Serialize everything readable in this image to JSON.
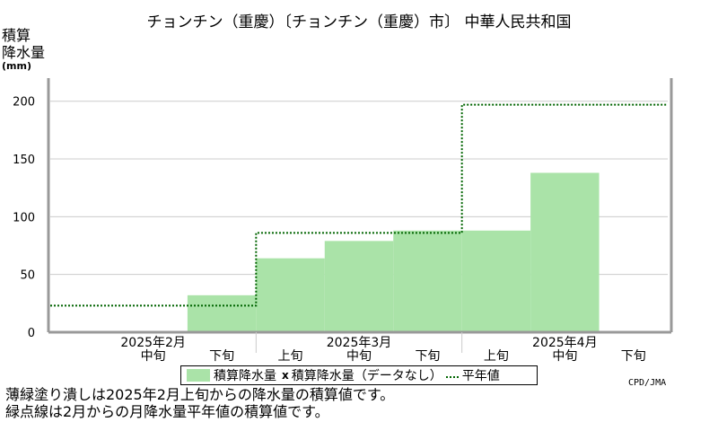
{
  "title": "チョンチン（重慶）〔チョンチン（重慶）市〕 中華人民共和国",
  "ylabel": {
    "line1": "積算",
    "line2": "降水量",
    "unit": "(mm)"
  },
  "legend": {
    "bar_label": "積算降水量",
    "nodata_mark": "x",
    "nodata_label": "積算降水量（データなし）",
    "normal_label": "平年値"
  },
  "credit": "CPD/JMA",
  "notes": {
    "line1": "薄緑塗り潰しは2025年2月上旬からの降水量の積算値です。",
    "line2": "緑点線は2月からの月降水量平年値の積算値です。"
  },
  "colors": {
    "bar": "#aae3a8",
    "normal_line": "#006400",
    "axis": "#999999",
    "grid": "#cccccc"
  },
  "chart_data": {
    "type": "area",
    "ylim": [
      0,
      220
    ],
    "yticks": [
      0,
      50,
      100,
      150,
      200
    ],
    "grid": true,
    "months": [
      "2025年2月",
      "2025年3月",
      "2025年4月"
    ],
    "periods": [
      "上旬",
      "中旬",
      "下旬",
      "上旬",
      "中旬",
      "下旬",
      "上旬",
      "中旬",
      "下旬"
    ],
    "period_labels_visible": [
      "",
      "中旬",
      "下旬",
      "上旬",
      "中旬",
      "下旬",
      "上旬",
      "中旬",
      "下旬"
    ],
    "series": [
      {
        "name": "積算降水量",
        "values": [
          null,
          null,
          32,
          64,
          79,
          88,
          88,
          138,
          null
        ]
      },
      {
        "name": "平年値",
        "values": [
          23,
          23,
          23,
          86,
          86,
          86,
          197,
          197,
          197
        ]
      }
    ]
  }
}
